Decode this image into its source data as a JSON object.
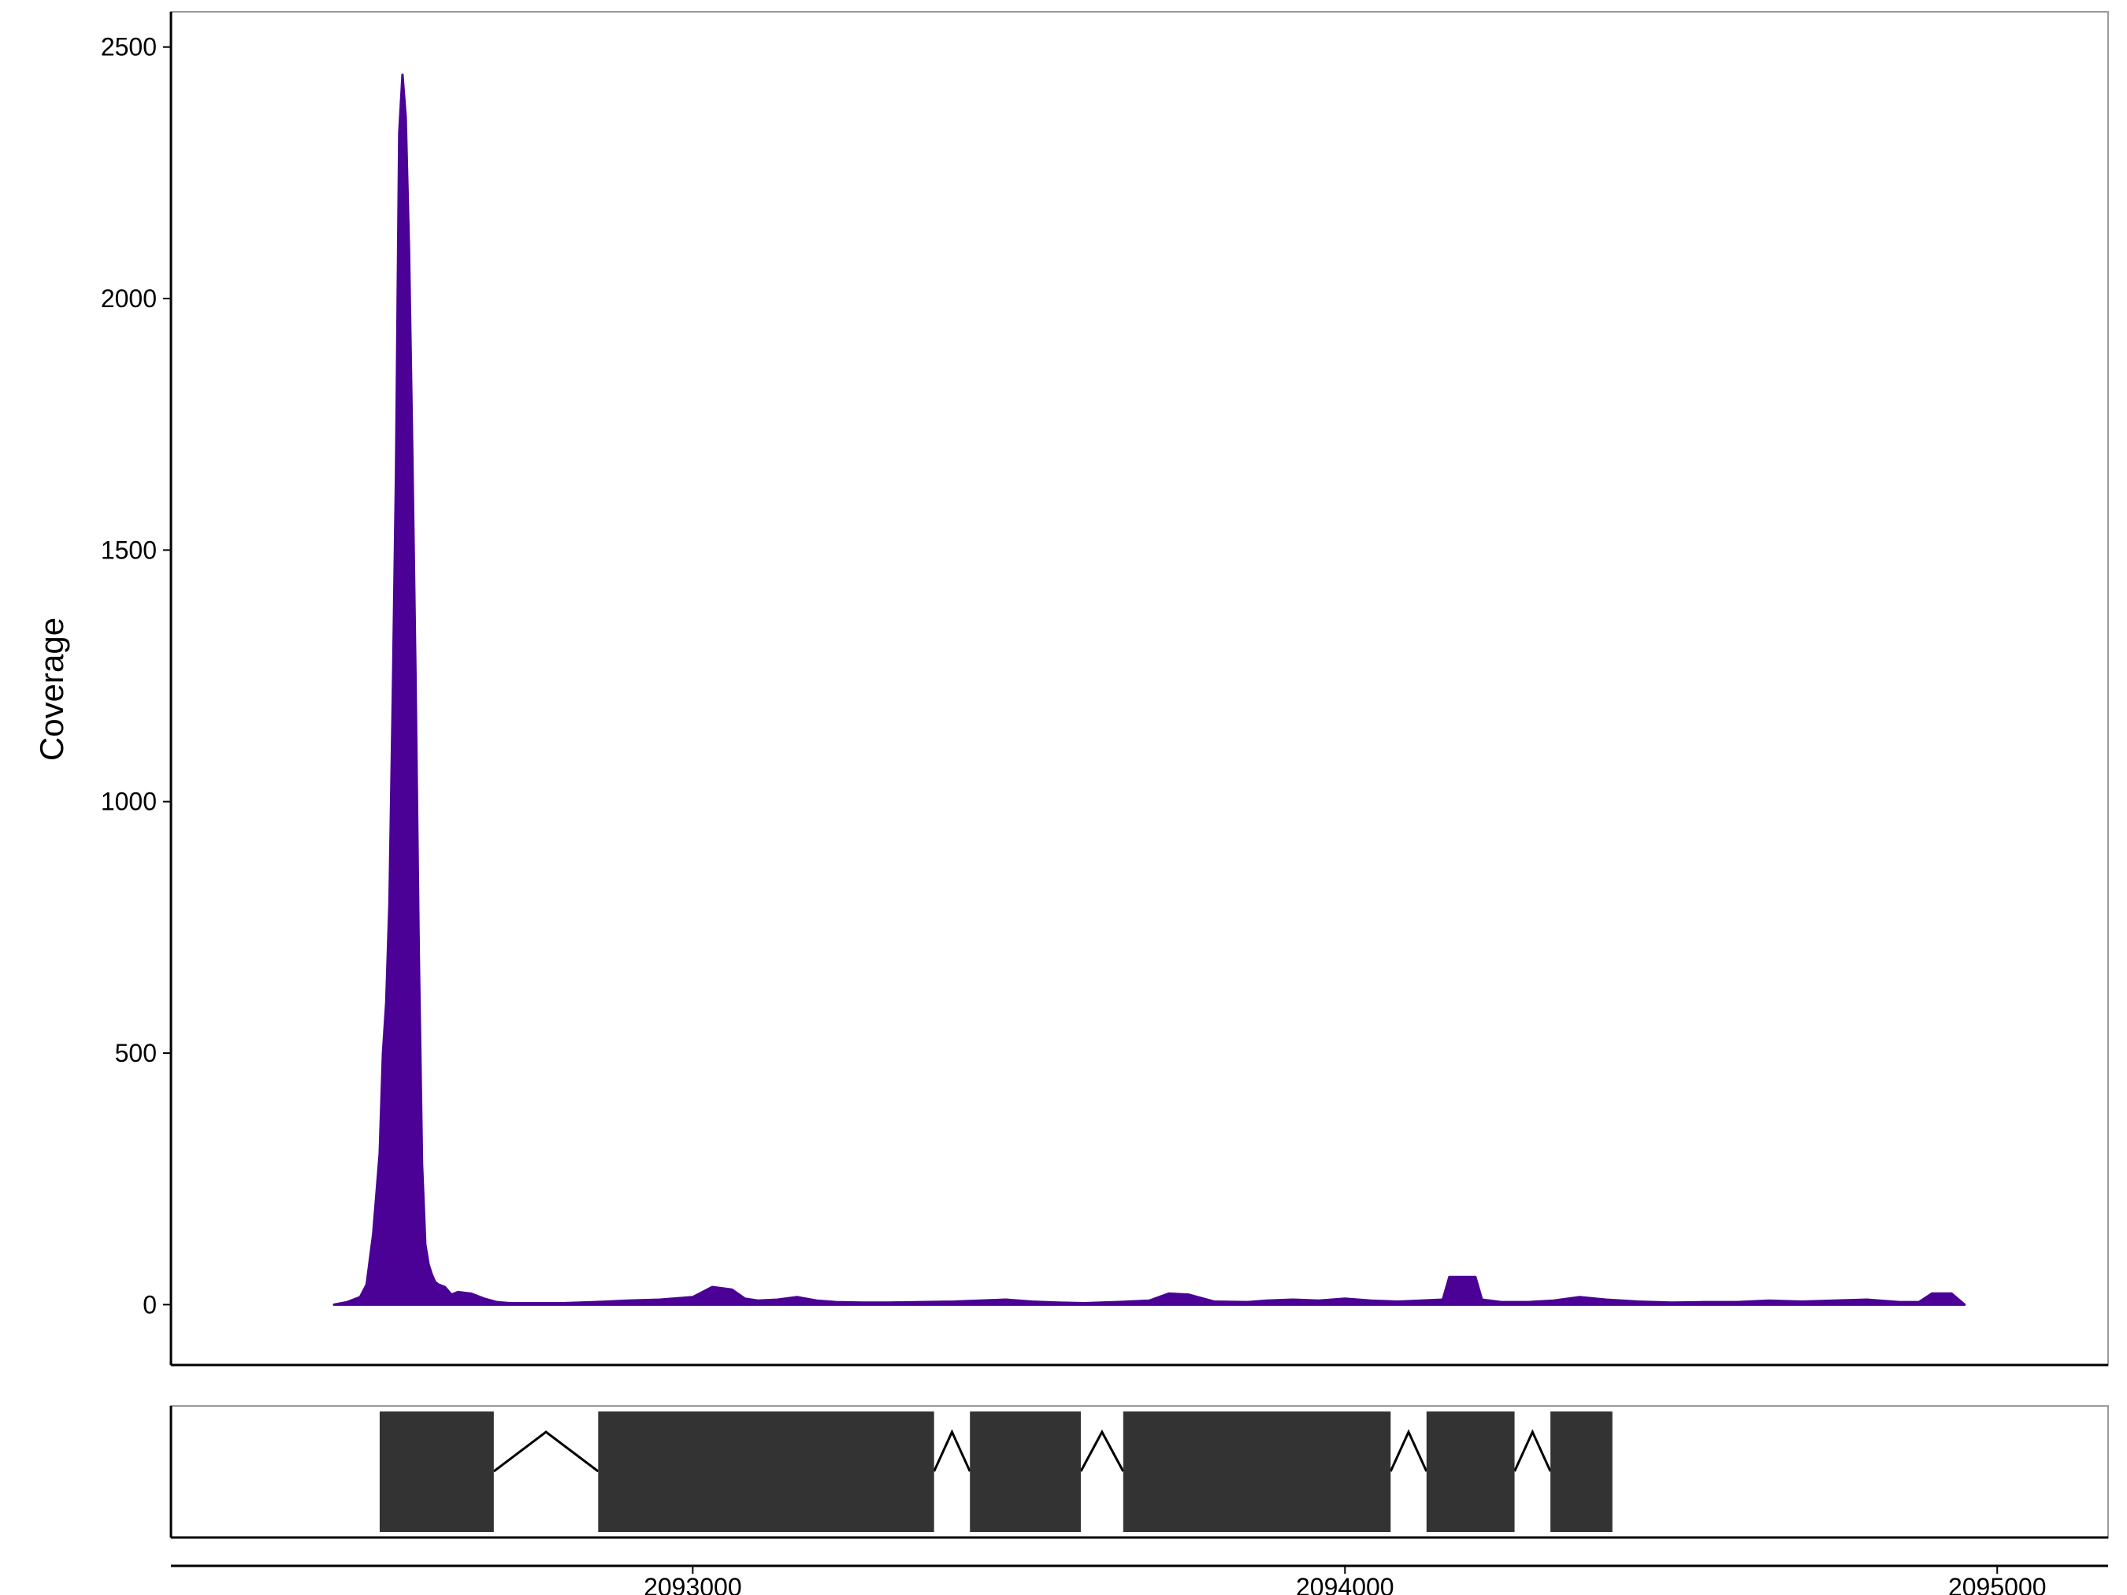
{
  "chart_data": {
    "type": "area",
    "title": "",
    "xlabel": "",
    "ylabel": "Coverage",
    "xlim": [
      2092200,
      2095170
    ],
    "ylim": [
      -120,
      2570
    ],
    "grid": false,
    "legend": "none",
    "fill_color": "#4B0096",
    "y_ticks": [
      0,
      500,
      1000,
      1500,
      2000,
      2500
    ],
    "y_tick_labels": [
      "0",
      "500",
      "1000",
      "1500",
      "2000",
      "2500"
    ],
    "x_ticks": [
      2093000,
      2094000,
      2095000
    ],
    "x_tick_labels": [
      "2093000",
      "2094000",
      "2095000"
    ],
    "series": [
      {
        "x": [
          2092450,
          2092470,
          2092490,
          2092500,
          2092510,
          2092520,
          2092525,
          2092530,
          2092535,
          2092540,
          2092545,
          2092550,
          2092555,
          2092560,
          2092565,
          2092570,
          2092575,
          2092580,
          2092585,
          2092590,
          2092595,
          2092600,
          2092605,
          2092610,
          2092620,
          2092630,
          2092640,
          2092660,
          2092680,
          2092700,
          2092720,
          2092760,
          2092800,
          2092850,
          2092900,
          2092950,
          2093000,
          2093030,
          2093060,
          2093080,
          2093100,
          2093130,
          2093160,
          2093190,
          2093220,
          2093260,
          2093300,
          2093350,
          2093400,
          2093440,
          2093480,
          2093520,
          2093560,
          2093600,
          2093650,
          2093700,
          2093730,
          2093760,
          2093800,
          2093850,
          2093880,
          2093920,
          2093960,
          2094000,
          2094040,
          2094080,
          2094150,
          2094160,
          2094200,
          2094210,
          2094240,
          2094280,
          2094320,
          2094360,
          2094400,
          2094450,
          2094500,
          2094550,
          2094600,
          2094650,
          2094700,
          2094750,
          2094800,
          2094850,
          2094880,
          2094900,
          2094930,
          2094950
        ],
        "y": [
          0,
          5,
          15,
          40,
          140,
          300,
          500,
          600,
          800,
          1200,
          1650,
          2330,
          2445,
          2360,
          2100,
          1700,
          1250,
          700,
          280,
          120,
          80,
          60,
          45,
          40,
          35,
          20,
          25,
          22,
          12,
          5,
          3,
          3,
          3,
          5,
          8,
          10,
          15,
          35,
          30,
          12,
          8,
          10,
          15,
          8,
          5,
          4,
          4,
          5,
          6,
          8,
          10,
          6,
          4,
          3,
          5,
          8,
          22,
          20,
          6,
          5,
          8,
          10,
          8,
          12,
          8,
          6,
          10,
          55,
          55,
          10,
          5,
          5,
          8,
          15,
          10,
          6,
          4,
          5,
          5,
          8,
          6,
          8,
          10,
          5,
          5,
          22,
          22,
          0
        ]
      }
    ],
    "gene_track": {
      "fill_color": "#333333",
      "exons": [
        [
          2092520,
          2092695
        ],
        [
          2092855,
          2093370
        ],
        [
          2093425,
          2093595
        ],
        [
          2093660,
          2094070
        ],
        [
          2094125,
          2094260
        ],
        [
          2094315,
          2094410
        ]
      ]
    }
  }
}
